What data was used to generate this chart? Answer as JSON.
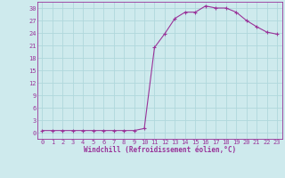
{
  "x": [
    0,
    1,
    2,
    3,
    4,
    5,
    6,
    7,
    8,
    9,
    10,
    11,
    12,
    13,
    14,
    15,
    16,
    17,
    18,
    19,
    20,
    21,
    22,
    23
  ],
  "y": [
    0.5,
    0.5,
    0.5,
    0.5,
    0.5,
    0.5,
    0.5,
    0.5,
    0.5,
    0.5,
    1.0,
    20.5,
    23.8,
    27.5,
    29.0,
    29.0,
    30.5,
    30.0,
    30.0,
    29.0,
    27.0,
    25.5,
    24.2,
    23.7
  ],
  "line_color": "#993399",
  "marker": "+",
  "marker_size": 3,
  "marker_lw": 0.8,
  "bg_color": "#ceeaed",
  "grid_color": "#b0d8dc",
  "xlabel": "Windchill (Refroidissement éolien,°C)",
  "xlabel_fontsize": 5.5,
  "tick_fontsize": 5.0,
  "xlim": [
    -0.5,
    23.5
  ],
  "ylim": [
    -1.5,
    31.5
  ],
  "yticks": [
    0,
    3,
    6,
    9,
    12,
    15,
    18,
    21,
    24,
    27,
    30
  ],
  "xticks": [
    0,
    1,
    2,
    3,
    4,
    5,
    6,
    7,
    8,
    9,
    10,
    11,
    12,
    13,
    14,
    15,
    16,
    17,
    18,
    19,
    20,
    21,
    22,
    23
  ],
  "line_width": 0.8,
  "spine_color": "#993399",
  "spine_lw": 0.6
}
